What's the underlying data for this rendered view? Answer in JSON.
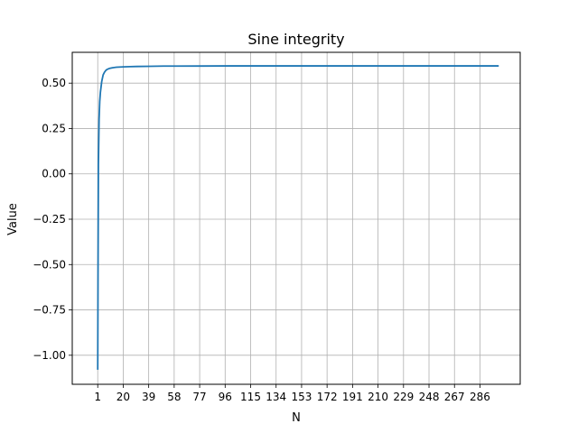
{
  "chart_data": {
    "type": "line",
    "title": "Sine integrity",
    "xlabel": "N",
    "ylabel": "Value",
    "xlim": [
      -18,
      316
    ],
    "ylim": [
      -1.16,
      0.67
    ],
    "grid": true,
    "x_ticks": [
      1,
      20,
      39,
      58,
      77,
      96,
      115,
      134,
      153,
      172,
      191,
      210,
      229,
      248,
      267,
      286
    ],
    "y_ticks": [
      -1.0,
      -0.75,
      -0.5,
      -0.25,
      0.0,
      0.25,
      0.5
    ],
    "y_tick_labels": [
      "−1.00",
      "−0.75",
      "−0.50",
      "−0.25",
      "0.00",
      "0.25",
      "0.50"
    ],
    "series": [
      {
        "name": "",
        "color": "#1f77b4",
        "x": [
          1,
          1.2,
          1.5,
          2,
          2.5,
          3,
          4,
          5,
          6,
          7,
          8,
          10,
          12,
          15,
          20,
          25,
          30,
          40,
          50,
          60,
          80,
          100,
          150,
          200,
          250,
          300
        ],
        "y": [
          -1.08,
          -0.6,
          0.05,
          0.3,
          0.4,
          0.45,
          0.51,
          0.545,
          0.56,
          0.57,
          0.576,
          0.582,
          0.585,
          0.588,
          0.59,
          0.591,
          0.592,
          0.593,
          0.594,
          0.594,
          0.5945,
          0.595,
          0.595,
          0.595,
          0.595,
          0.595
        ]
      }
    ]
  }
}
